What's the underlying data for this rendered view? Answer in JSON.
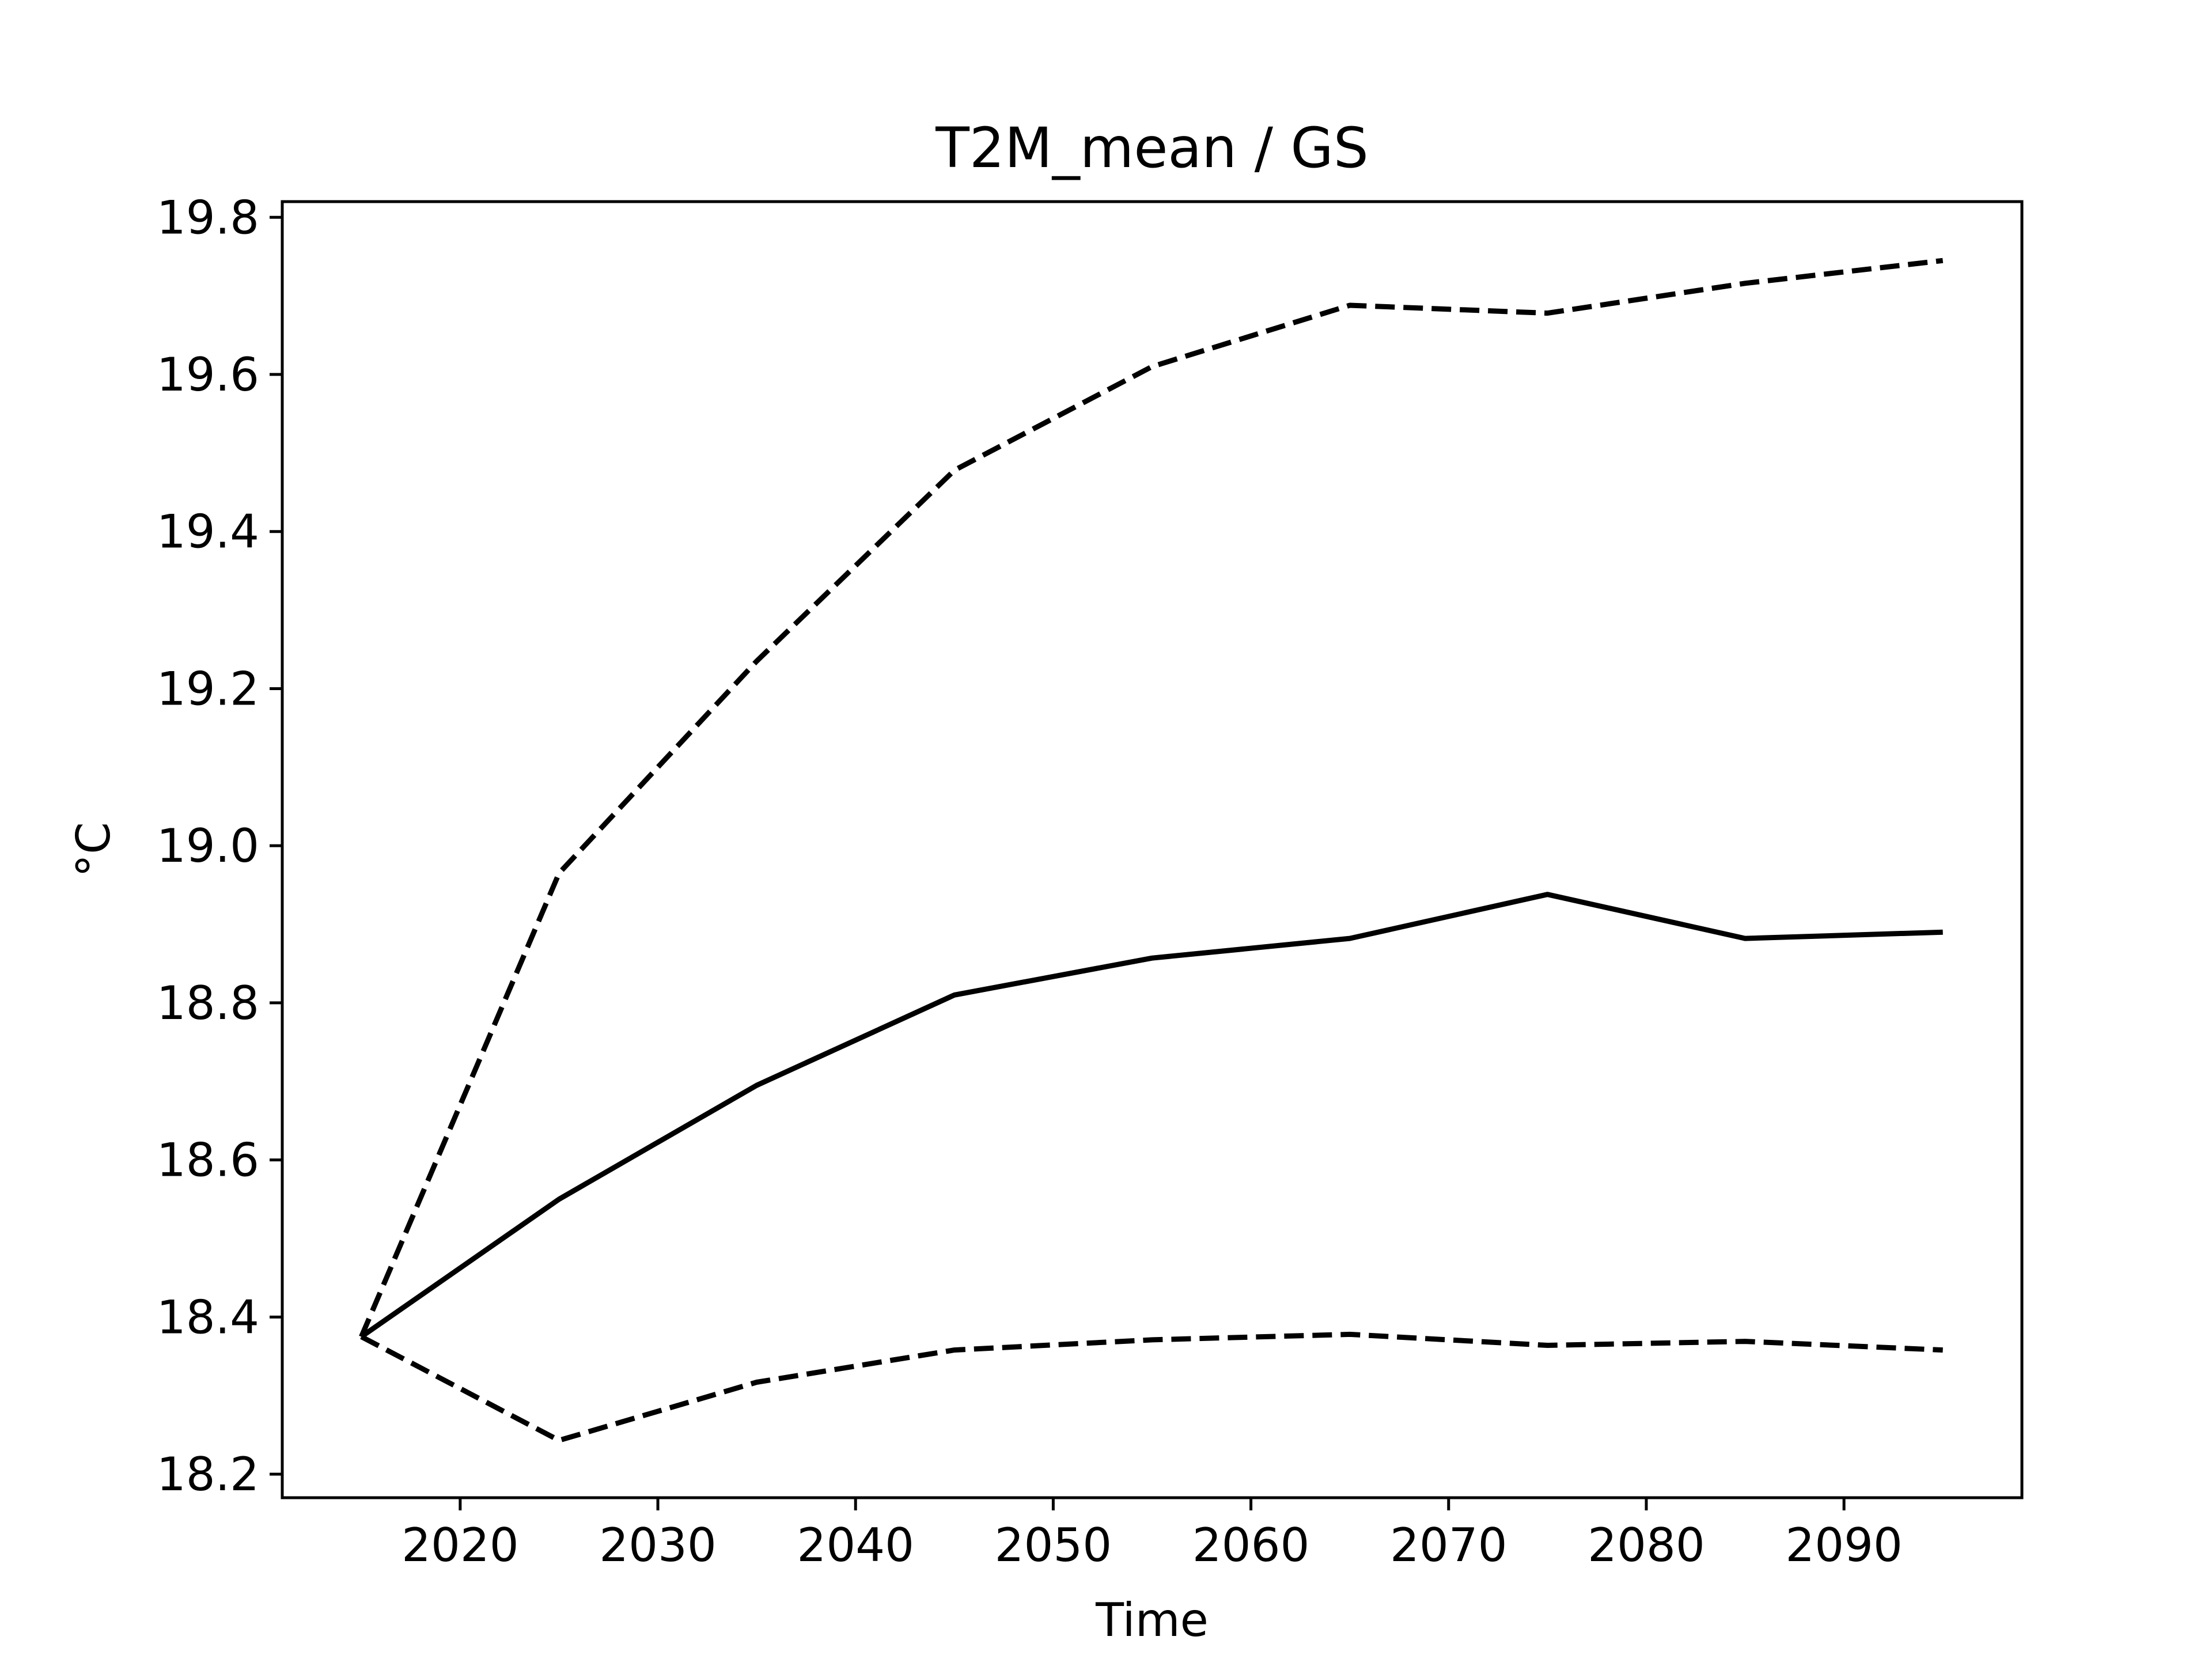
{
  "chart_data": {
    "type": "line",
    "title": "T2M_mean / GS",
    "xlabel": "Time",
    "ylabel": "°C",
    "x": [
      2015,
      2025,
      2035,
      2045,
      2055,
      2065,
      2075,
      2085,
      2095
    ],
    "xlim": [
      2011,
      2099
    ],
    "ylim": [
      18.17,
      19.82
    ],
    "xticks": [
      "2020",
      "2030",
      "2040",
      "2050",
      "2060",
      "2070",
      "2080",
      "2090"
    ],
    "yticks": [
      "18.2",
      "18.4",
      "18.6",
      "18.8",
      "19.0",
      "19.2",
      "19.4",
      "19.6",
      "19.8"
    ],
    "grid": false,
    "series": [
      {
        "style": "solid",
        "color": "#000000",
        "values": [
          18.375,
          18.55,
          18.695,
          18.81,
          18.857,
          18.882,
          18.938,
          18.882,
          18.89
        ]
      },
      {
        "style": "dashed",
        "color": "#000000",
        "values": [
          18.375,
          18.965,
          19.235,
          19.478,
          19.61,
          19.688,
          19.678,
          19.716,
          19.745
        ]
      },
      {
        "style": "dashed",
        "color": "#000000",
        "values": [
          18.375,
          18.243,
          18.317,
          18.358,
          18.371,
          18.378,
          18.364,
          18.369,
          18.358
        ]
      }
    ]
  }
}
